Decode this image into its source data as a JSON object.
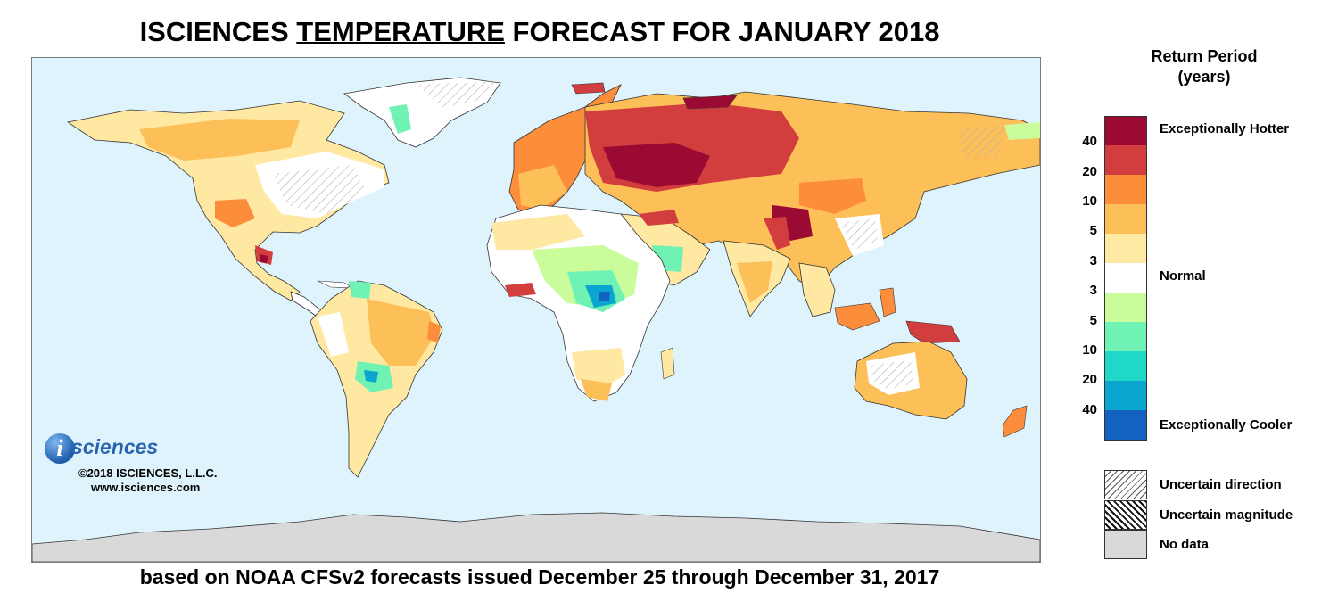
{
  "title": {
    "prefix": "ISCIENCES ",
    "underlined": "TEMPERATURE",
    "suffix": " FORECAST FOR JANUARY 2018"
  },
  "subtitle": "based on NOAA CFSv2 forecasts issued December 25 through December 31, 2017",
  "logo": {
    "mark": "i",
    "wordmark": "sciences",
    "copyright": "©2018 ISCIENCES, L.L.C.",
    "website": "www.isciences.com"
  },
  "legend": {
    "title_line1": "Return Period",
    "title_line2": "(years)",
    "swatches": [
      "#9b0a32",
      "#d23d3d",
      "#fb8d3b",
      "#fdbf58",
      "#feeaa2",
      "#ffffff",
      "#cafc9c",
      "#6ff2b3",
      "#1fd8c8",
      "#0aa6cf",
      "#1462c0"
    ],
    "ticks": [
      "40",
      "20",
      "10",
      "5",
      "3",
      "3",
      "5",
      "10",
      "20",
      "40"
    ],
    "categories": {
      "hotter": "Exceptionally Hotter",
      "normal": "Normal",
      "cooler": "Exceptionally Cooler"
    },
    "keys": [
      {
        "label": "Uncertain direction",
        "pattern": "hatch-light"
      },
      {
        "label": "Uncertain magnitude",
        "pattern": "hatch-dark"
      },
      {
        "label": "No data",
        "pattern": "gray",
        "color": "#d9d9d9"
      }
    ]
  },
  "map": {
    "ocean_color": "#dff3fd",
    "nodata_color": "#d9d9d9"
  }
}
